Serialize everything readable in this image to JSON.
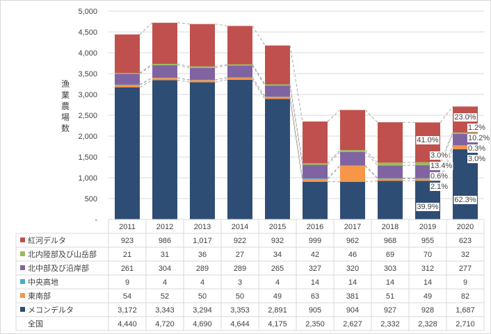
{
  "chart_data": {
    "type": "bar",
    "stacked": true,
    "ylabel": "漁業農場数",
    "ylim": [
      0,
      5000
    ],
    "yticks": [
      "-",
      "500",
      "1,000",
      "1,500",
      "2,000",
      "2,500",
      "3,000",
      "3,500",
      "4,000",
      "4,500",
      "5,000"
    ],
    "categories": [
      "2011",
      "2012",
      "2013",
      "2014",
      "2015",
      "2016",
      "2017",
      "2018",
      "2019",
      "2020"
    ],
    "series": [
      {
        "name": "メコンデルタ",
        "color": "#2e4d74",
        "values": [
          3172,
          3343,
          3294,
          3353,
          2891,
          905,
          904,
          927,
          928,
          1687
        ],
        "display": [
          "3,172",
          "3,343",
          "3,294",
          "3,353",
          "2,891",
          "905",
          "904",
          "927",
          "928",
          "1,687"
        ]
      },
      {
        "name": "東南部",
        "color": "#f79646",
        "values": [
          54,
          52,
          50,
          50,
          49,
          63,
          381,
          51,
          49,
          82
        ],
        "display": [
          "54",
          "52",
          "50",
          "50",
          "49",
          "63",
          "381",
          "51",
          "49",
          "82"
        ]
      },
      {
        "name": "中央高地",
        "color": "#4bacc6",
        "values": [
          9,
          4,
          4,
          3,
          4,
          14,
          14,
          14,
          14,
          9
        ],
        "display": [
          "9",
          "4",
          "4",
          "3",
          "4",
          "14",
          "14",
          "14",
          "14",
          "9"
        ]
      },
      {
        "name": "北中部及び沿岸部",
        "color": "#8064a2",
        "values": [
          261,
          304,
          289,
          289,
          265,
          327,
          320,
          303,
          312,
          277
        ],
        "display": [
          "261",
          "304",
          "289",
          "289",
          "265",
          "327",
          "320",
          "303",
          "312",
          "277"
        ]
      },
      {
        "name": "北内陸部及び山岳部",
        "color": "#9bbb59",
        "values": [
          21,
          31,
          36,
          27,
          34,
          42,
          46,
          69,
          70,
          32
        ],
        "display": [
          "21",
          "31",
          "36",
          "27",
          "34",
          "42",
          "46",
          "69",
          "70",
          "32"
        ]
      },
      {
        "name": "紅河デルタ",
        "color": "#c0504d",
        "values": [
          923,
          986,
          1017,
          922,
          932,
          999,
          962,
          968,
          955,
          623
        ],
        "display": [
          "923",
          "986",
          "1,017",
          "922",
          "932",
          "999",
          "962",
          "968",
          "955",
          "623"
        ]
      }
    ],
    "total": {
      "name": "全国",
      "values": [
        "4,440",
        "4,720",
        "4,690",
        "4,644",
        "4,175",
        "2,350",
        "2,627",
        "2,332",
        "2,328",
        "2,710"
      ]
    },
    "annotations": {
      "2019": [
        "39.9%",
        "2.1%",
        "0.6%",
        "13.4%",
        "3.0%",
        "41.0%"
      ],
      "2020": [
        "62.3%",
        "3.0%",
        "0.3%",
        "10.2%",
        "1.2%",
        "23.0%"
      ]
    }
  }
}
